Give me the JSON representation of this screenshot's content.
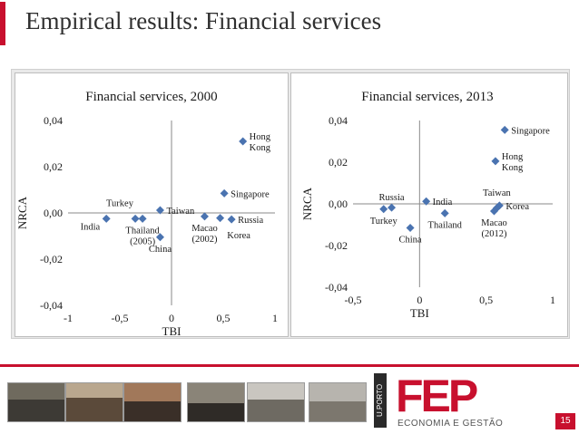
{
  "slide": {
    "title": "Empirical results: Financial services",
    "page_number": "15"
  },
  "footer": {
    "logo_text": "FEP",
    "logo_sub": "ECONOMIA E GESTÃO",
    "uporto": "U.PORTO"
  },
  "colors": {
    "accent": "#c8102e",
    "marker": "#4a73b0"
  },
  "chart_data": [
    {
      "type": "scatter",
      "title": "Financial services, 2000",
      "xlabel": "TBI",
      "ylabel": "NRCA",
      "xlim": [
        -1,
        1
      ],
      "ylim": [
        -0.04,
        0.04
      ],
      "x_ticks": [
        "-1",
        "-0,5",
        "0",
        "0,5",
        "1"
      ],
      "y_ticks": [
        "0,04",
        "0,02",
        "0,00",
        "-0,02",
        "-0,04"
      ],
      "points": [
        {
          "x": 0.69,
          "y": 0.031,
          "label": [
            "Hong",
            "Kong"
          ]
        },
        {
          "x": 0.51,
          "y": 0.0085,
          "label": [
            "Singapore"
          ]
        },
        {
          "x": -0.11,
          "y": 0.0012,
          "label": [
            "Taiwan"
          ]
        },
        {
          "x": -0.63,
          "y": -0.0025,
          "label": [
            "India"
          ]
        },
        {
          "x": -0.35,
          "y": -0.0025,
          "label": []
        },
        {
          "x": -0.28,
          "y": -0.0025,
          "label": [
            "Thailand",
            "(2005)"
          ]
        },
        {
          "x": -0.11,
          "y": -0.0105,
          "label": [
            "China"
          ]
        },
        {
          "x": 0.32,
          "y": -0.0015,
          "label": [
            "Macao",
            "(2002)"
          ]
        },
        {
          "x": 0.47,
          "y": -0.0022,
          "label": []
        },
        {
          "x": 0.58,
          "y": -0.0028,
          "label": [
            "Russia"
          ]
        }
      ],
      "extra_labels": [
        {
          "text": "Turkey",
          "x": -0.5,
          "y": 0.003
        },
        {
          "text": "Korea",
          "x": 0.65,
          "y": -0.011
        }
      ]
    },
    {
      "type": "scatter",
      "title": "Financial services, 2013",
      "xlabel": "TBI",
      "ylabel": "NRCA",
      "xlim": [
        -0.5,
        1
      ],
      "ylim": [
        -0.04,
        0.04
      ],
      "x_ticks": [
        "-0,5",
        "0",
        "0,5",
        "1"
      ],
      "y_ticks": [
        "0,04",
        "0,02",
        "0,00",
        "-0,02",
        "-0,04"
      ],
      "points": [
        {
          "x": 0.64,
          "y": 0.0355,
          "label": [
            "Singapore"
          ]
        },
        {
          "x": 0.57,
          "y": 0.0205,
          "label": [
            "Hong",
            "Kong"
          ]
        },
        {
          "x": -0.27,
          "y": -0.0025,
          "label": [
            "Turkey"
          ]
        },
        {
          "x": -0.21,
          "y": -0.0018,
          "label": [
            "Russia"
          ]
        },
        {
          "x": 0.05,
          "y": 0.0012,
          "label": [
            "India"
          ]
        },
        {
          "x": -0.07,
          "y": -0.0115,
          "label": [
            "China"
          ]
        },
        {
          "x": 0.19,
          "y": -0.0045,
          "label": [
            "Thailand"
          ]
        },
        {
          "x": 0.6,
          "y": -0.0008,
          "label": [
            "Korea"
          ]
        },
        {
          "x": 0.58,
          "y": -0.002,
          "label": []
        },
        {
          "x": 0.56,
          "y": -0.0035,
          "label": [
            "Macao",
            "(2012)"
          ]
        }
      ],
      "extra_labels": [
        {
          "text": "Taiwan",
          "x": 0.58,
          "y": 0.004
        }
      ]
    }
  ]
}
